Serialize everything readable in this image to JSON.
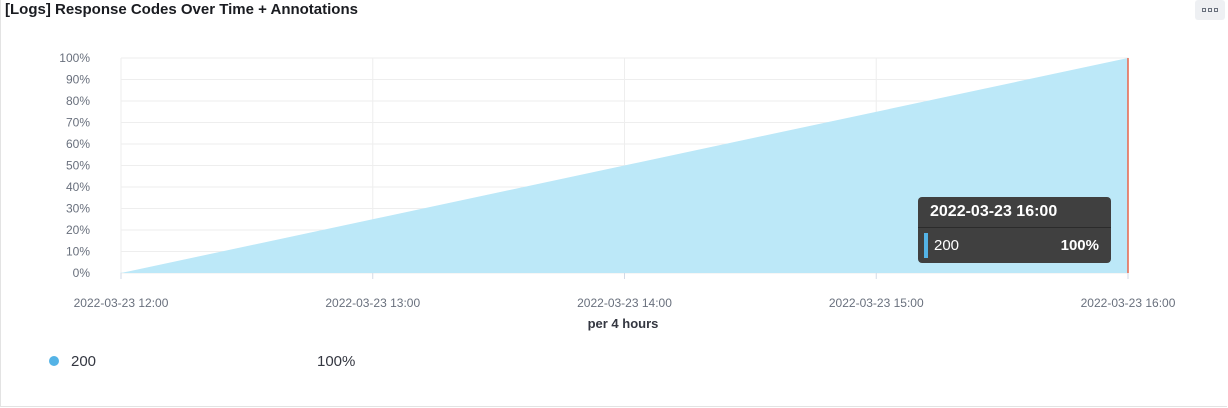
{
  "panel": {
    "title": "[Logs] Response Codes Over Time + Annotations",
    "options_icon": "ellipsis-icon"
  },
  "chart_data": {
    "type": "area",
    "x": [
      "2022-03-23 12:00",
      "2022-03-23 16:00"
    ],
    "xticks": [
      "2022-03-23 12:00",
      "2022-03-23 13:00",
      "2022-03-23 14:00",
      "2022-03-23 15:00",
      "2022-03-23 16:00"
    ],
    "yticks": [
      "0%",
      "10%",
      "20%",
      "30%",
      "40%",
      "50%",
      "60%",
      "70%",
      "80%",
      "90%",
      "100%"
    ],
    "ylim": [
      0,
      100
    ],
    "xlabel": "per 4 hours",
    "series": [
      {
        "name": "200",
        "values": [
          0,
          100
        ],
        "color": "#bce8f8"
      }
    ],
    "annotation_line": {
      "x": "2022-03-23 16:00",
      "color": "#e7664c"
    },
    "grid": true
  },
  "tooltip": {
    "header": "2022-03-23 16:00",
    "series": "200",
    "value": "100%",
    "swatch_color": "#54b3e6"
  },
  "legend": {
    "items": [
      {
        "name": "200",
        "value": "100%",
        "color": "#54b3e6"
      }
    ]
  }
}
